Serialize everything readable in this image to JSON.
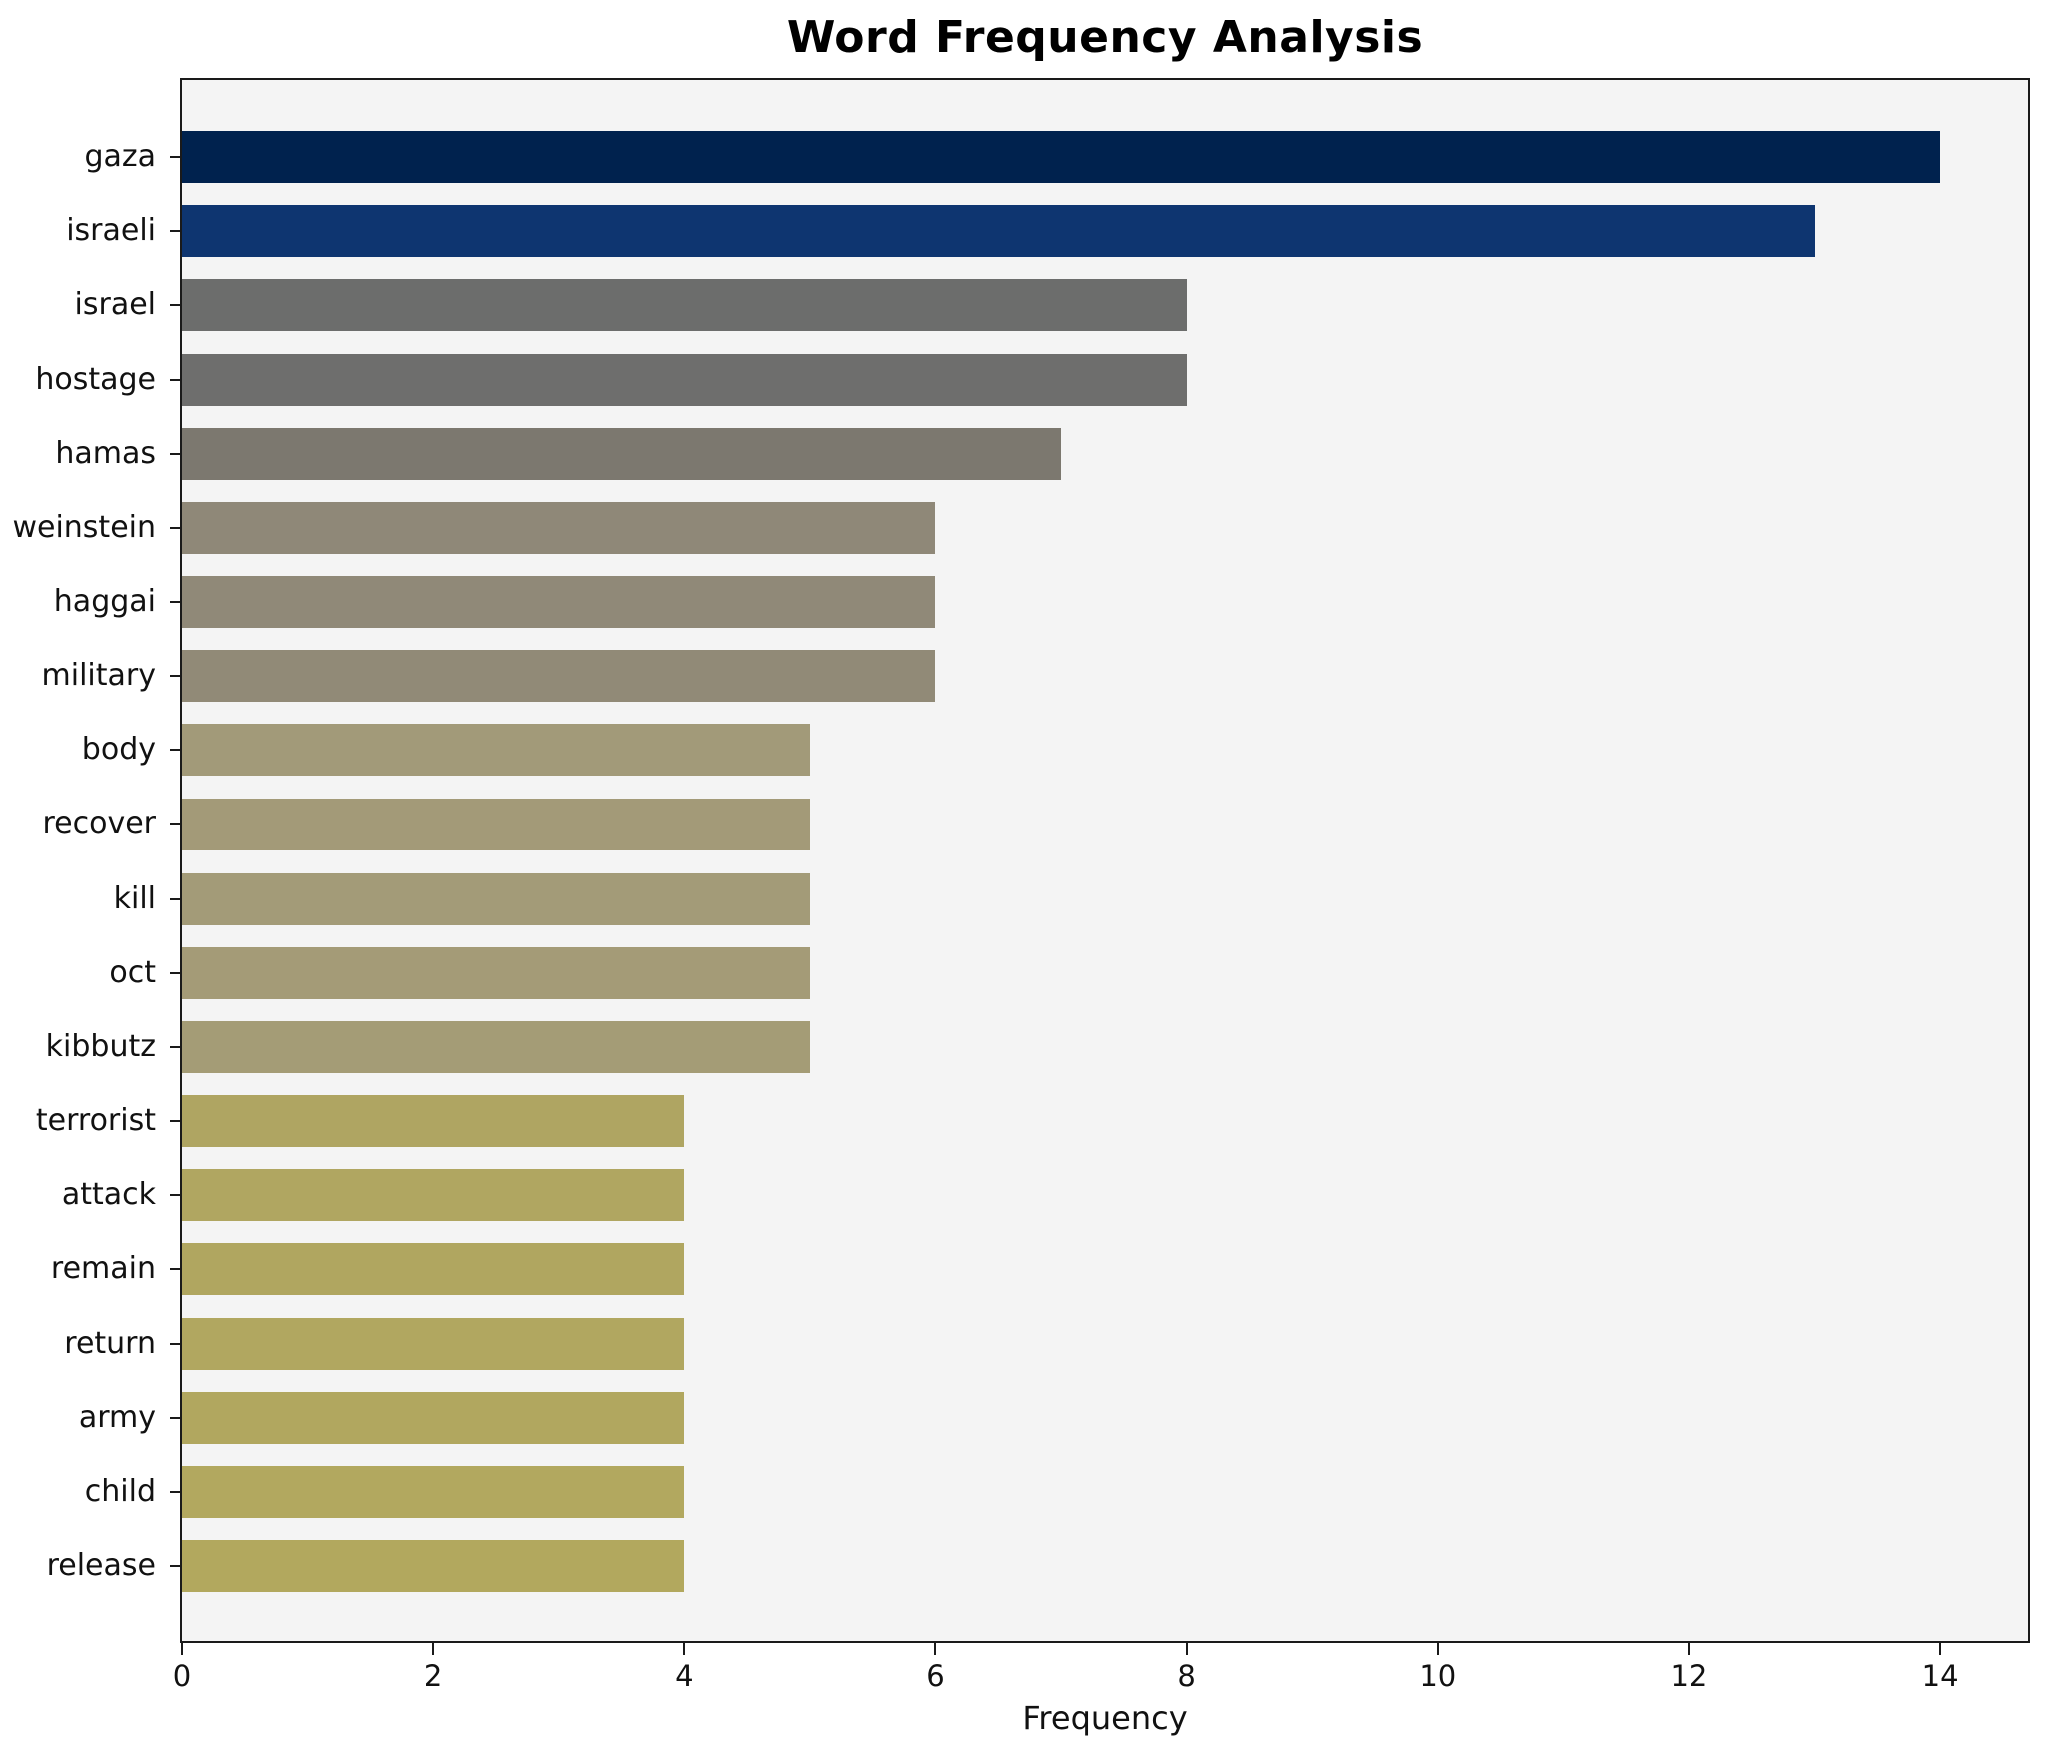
{
  "title": "Word Frequency Analysis",
  "axes": {
    "xlabel": "Frequency"
  },
  "colors": {
    "figure_background": "#ffffff",
    "plot_background": "#f4f4f4",
    "axis_frame": "#1a1a1a",
    "text": "#111111",
    "top_bar": "#00224e",
    "bottom_bar": "#b1a760"
  },
  "chart_data": {
    "type": "bar",
    "orientation": "horizontal",
    "title": "Word Frequency Analysis",
    "xlabel": "Frequency",
    "ylabel": "",
    "categories": [
      "gaza",
      "israeli",
      "israel",
      "hostage",
      "hamas",
      "weinstein",
      "haggai",
      "military",
      "body",
      "recover",
      "kill",
      "oct",
      "kibbutz",
      "terrorist",
      "attack",
      "remain",
      "return",
      "army",
      "child",
      "release"
    ],
    "values": [
      14,
      13,
      8,
      8,
      7,
      6,
      6,
      6,
      5,
      5,
      5,
      5,
      5,
      4,
      4,
      4,
      4,
      4,
      4,
      4
    ],
    "bar_colors": [
      "#00224e",
      "#0e3570",
      "#6c6d6c",
      "#6e6e6d",
      "#7c786f",
      "#8f8878",
      "#908978",
      "#918a77",
      "#a29a79",
      "#a39a78",
      "#a39b78",
      "#a49b77",
      "#a49c76",
      "#afa562",
      "#b0a661",
      "#b0a660",
      "#b1a760",
      "#b1a75f",
      "#b2a85f",
      "#b2a85e"
    ],
    "xlim": [
      0,
      14.7
    ],
    "xticks": [
      0,
      2,
      4,
      6,
      8,
      10,
      12,
      14
    ],
    "grid": false,
    "legend": false,
    "sorted": "descending"
  }
}
